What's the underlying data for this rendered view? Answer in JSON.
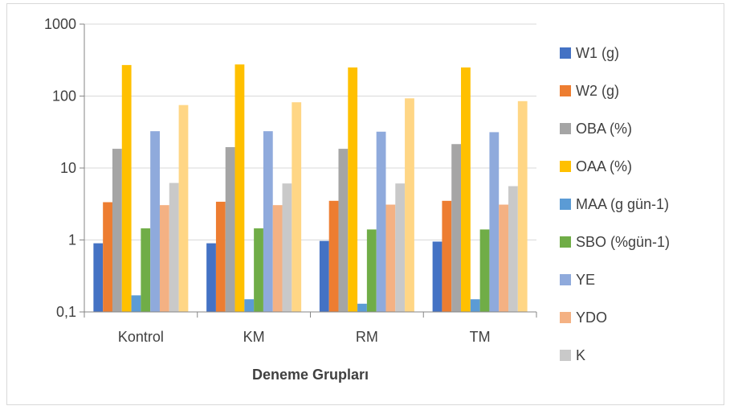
{
  "chart_data": {
    "type": "bar",
    "yscale": "log",
    "ylim": [
      0.1,
      1000
    ],
    "yticks": [
      "0,1",
      "1",
      "10",
      "100",
      "1000"
    ],
    "xlabel": "Deneme Grupları",
    "ylabel": "",
    "grid": true,
    "legend_position": "right",
    "categories": [
      "Kontrol",
      "KM",
      "RM",
      "TM"
    ],
    "series": [
      {
        "name": "W1 (g)",
        "color": "#4472c4",
        "values": [
          0.9,
          0.9,
          0.97,
          0.95
        ]
      },
      {
        "name": "W2 (g)",
        "color": "#ed7d31",
        "values": [
          3.35,
          3.4,
          3.5,
          3.5
        ]
      },
      {
        "name": "OBA (%)",
        "color": "#a5a5a5",
        "values": [
          18.5,
          19.5,
          18.5,
          21.5
        ]
      },
      {
        "name": "OAA (%)",
        "color": "#ffc000",
        "values": [
          270,
          275,
          250,
          250
        ]
      },
      {
        "name": "MAA (g gün-1)",
        "color": "#5b9bd5",
        "values": [
          0.17,
          0.15,
          0.13,
          0.15
        ]
      },
      {
        "name": "SBO (%gün-1)",
        "color": "#70ad47",
        "values": [
          1.45,
          1.45,
          1.4,
          1.4
        ]
      },
      {
        "name": "YE",
        "color": "#8faadc",
        "values": [
          32.5,
          32.5,
          32,
          31.5
        ]
      },
      {
        "name": "YDO",
        "color": "#f4b183",
        "values": [
          3.05,
          3.05,
          3.1,
          3.1
        ]
      },
      {
        "name": "K",
        "color": "#c9c9c9",
        "values": [
          6.2,
          6.1,
          6.1,
          5.6
        ]
      },
      {
        "name": "",
        "color": "#ffd685",
        "values": [
          75,
          82,
          93,
          85
        ]
      }
    ]
  }
}
